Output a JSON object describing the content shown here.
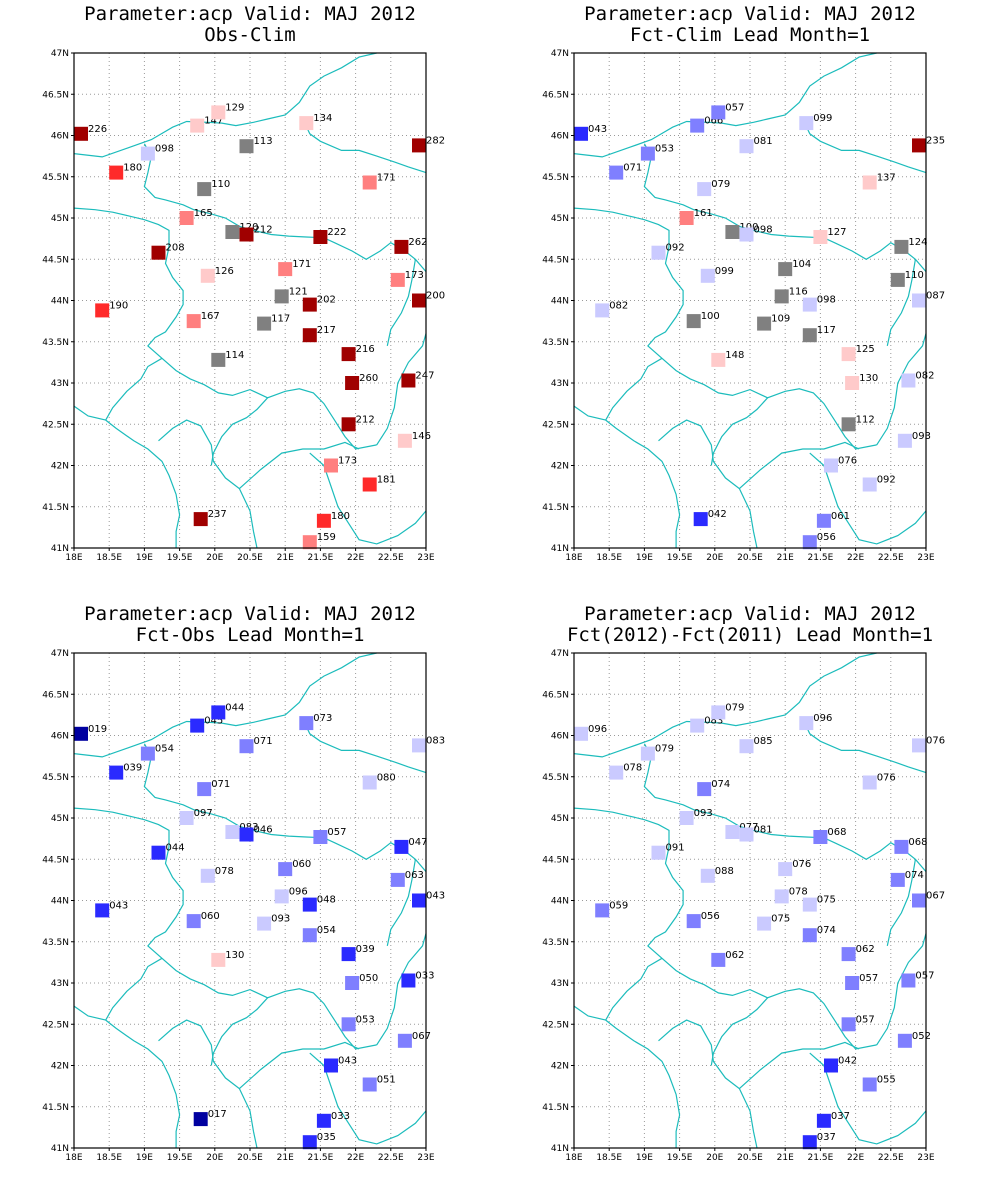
{
  "lat_ticks": [
    "47N",
    "46.5N",
    "46N",
    "45.5N",
    "45N",
    "44.5N",
    "44N",
    "43.5N",
    "43N",
    "42.5N",
    "42N",
    "41.5N",
    "41N"
  ],
  "lon_ticks": [
    "18E",
    "18.5E",
    "19E",
    "19.5E",
    "20E",
    "20.5E",
    "21E",
    "21.5E",
    "22E",
    "22.5E",
    "23E"
  ],
  "colors": {
    "coast": "#1cbcbc",
    "grid": "#9a9a9a",
    "dark_red": "#a00000",
    "red": "#ff2a2a",
    "light_red": "#ff7f7f",
    "pink": "#ffcaca",
    "grey": "#808080",
    "light_blue": "#cacaff",
    "mid_blue": "#7f7fff",
    "blue": "#2a2aff",
    "dark_blue": "#0000a0"
  },
  "panels": [
    {
      "title1": "Parameter:acp Valid: MAJ 2012",
      "title2": "Obs-Clim",
      "stations": [
        {
          "lon": 18.1,
          "lat": 46.02,
          "label": "226",
          "c": "dark_red"
        },
        {
          "lon": 18.6,
          "lat": 45.55,
          "label": "180",
          "c": "red"
        },
        {
          "lon": 19.05,
          "lat": 45.78,
          "label": "098",
          "c": "light_blue"
        },
        {
          "lon": 19.75,
          "lat": 46.12,
          "label": "147",
          "c": "pink"
        },
        {
          "lon": 20.05,
          "lat": 46.28,
          "label": "129",
          "c": "pink"
        },
        {
          "lon": 20.45,
          "lat": 45.87,
          "label": "113",
          "c": "grey"
        },
        {
          "lon": 21.3,
          "lat": 46.15,
          "label": "134",
          "c": "pink"
        },
        {
          "lon": 22.9,
          "lat": 45.88,
          "label": "282",
          "c": "dark_red"
        },
        {
          "lon": 19.85,
          "lat": 45.35,
          "label": "110",
          "c": "grey"
        },
        {
          "lon": 22.2,
          "lat": 45.43,
          "label": "171",
          "c": "light_red"
        },
        {
          "lon": 19.6,
          "lat": 45.0,
          "label": "165",
          "c": "light_red"
        },
        {
          "lon": 20.25,
          "lat": 44.83,
          "label": "120",
          "c": "grey"
        },
        {
          "lon": 20.45,
          "lat": 44.8,
          "label": "212",
          "c": "dark_red"
        },
        {
          "lon": 21.5,
          "lat": 44.77,
          "label": "222",
          "c": "dark_red"
        },
        {
          "lon": 22.65,
          "lat": 44.65,
          "label": "262",
          "c": "dark_red"
        },
        {
          "lon": 19.2,
          "lat": 44.58,
          "label": "208",
          "c": "dark_red"
        },
        {
          "lon": 19.9,
          "lat": 44.3,
          "label": "126",
          "c": "pink"
        },
        {
          "lon": 21.0,
          "lat": 44.38,
          "label": "171",
          "c": "light_red"
        },
        {
          "lon": 22.6,
          "lat": 44.25,
          "label": "173",
          "c": "light_red"
        },
        {
          "lon": 20.95,
          "lat": 44.05,
          "label": "121",
          "c": "grey"
        },
        {
          "lon": 21.35,
          "lat": 43.95,
          "label": "202",
          "c": "dark_red"
        },
        {
          "lon": 22.9,
          "lat": 44.0,
          "label": "200",
          "c": "dark_red"
        },
        {
          "lon": 18.4,
          "lat": 43.88,
          "label": "190",
          "c": "red"
        },
        {
          "lon": 19.7,
          "lat": 43.75,
          "label": "167",
          "c": "light_red"
        },
        {
          "lon": 20.7,
          "lat": 43.72,
          "label": "117",
          "c": "grey"
        },
        {
          "lon": 21.35,
          "lat": 43.58,
          "label": "217",
          "c": "dark_red"
        },
        {
          "lon": 21.9,
          "lat": 43.35,
          "label": "216",
          "c": "dark_red"
        },
        {
          "lon": 20.05,
          "lat": 43.28,
          "label": "114",
          "c": "grey"
        },
        {
          "lon": 21.95,
          "lat": 43.0,
          "label": "260",
          "c": "dark_red"
        },
        {
          "lon": 22.75,
          "lat": 43.03,
          "label": "247",
          "c": "dark_red"
        },
        {
          "lon": 21.9,
          "lat": 42.5,
          "label": "212",
          "c": "dark_red"
        },
        {
          "lon": 22.7,
          "lat": 42.3,
          "label": "146",
          "c": "pink"
        },
        {
          "lon": 21.65,
          "lat": 42.0,
          "label": "173",
          "c": "light_red"
        },
        {
          "lon": 22.2,
          "lat": 41.77,
          "label": "181",
          "c": "red"
        },
        {
          "lon": 19.8,
          "lat": 41.35,
          "label": "237",
          "c": "dark_red"
        },
        {
          "lon": 21.55,
          "lat": 41.33,
          "label": "180",
          "c": "red"
        },
        {
          "lon": 21.35,
          "lat": 41.07,
          "label": "159",
          "c": "light_red"
        }
      ]
    },
    {
      "title1": "Parameter:acp Valid: MAJ 2012",
      "title2": "Fct-Clim Lead Month=1",
      "stations": [
        {
          "lon": 18.1,
          "lat": 46.02,
          "label": "043",
          "c": "blue"
        },
        {
          "lon": 18.6,
          "lat": 45.55,
          "label": "071",
          "c": "mid_blue"
        },
        {
          "lon": 19.05,
          "lat": 45.78,
          "label": "053",
          "c": "mid_blue"
        },
        {
          "lon": 19.75,
          "lat": 46.12,
          "label": "066",
          "c": "mid_blue"
        },
        {
          "lon": 20.05,
          "lat": 46.28,
          "label": "057",
          "c": "mid_blue"
        },
        {
          "lon": 20.45,
          "lat": 45.87,
          "label": "081",
          "c": "light_blue"
        },
        {
          "lon": 21.3,
          "lat": 46.15,
          "label": "099",
          "c": "light_blue"
        },
        {
          "lon": 22.9,
          "lat": 45.88,
          "label": "235",
          "c": "dark_red"
        },
        {
          "lon": 19.85,
          "lat": 45.35,
          "label": "079",
          "c": "light_blue"
        },
        {
          "lon": 22.2,
          "lat": 45.43,
          "label": "137",
          "c": "pink"
        },
        {
          "lon": 19.6,
          "lat": 45.0,
          "label": "161",
          "c": "light_red"
        },
        {
          "lon": 20.25,
          "lat": 44.83,
          "label": "100",
          "c": "grey"
        },
        {
          "lon": 20.45,
          "lat": 44.8,
          "label": "098",
          "c": "light_blue"
        },
        {
          "lon": 21.5,
          "lat": 44.77,
          "label": "127",
          "c": "pink"
        },
        {
          "lon": 22.65,
          "lat": 44.65,
          "label": "124",
          "c": "grey"
        },
        {
          "lon": 19.2,
          "lat": 44.58,
          "label": "092",
          "c": "light_blue"
        },
        {
          "lon": 19.9,
          "lat": 44.3,
          "label": "099",
          "c": "light_blue"
        },
        {
          "lon": 21.0,
          "lat": 44.38,
          "label": "104",
          "c": "grey"
        },
        {
          "lon": 22.6,
          "lat": 44.25,
          "label": "110",
          "c": "grey"
        },
        {
          "lon": 20.95,
          "lat": 44.05,
          "label": "116",
          "c": "grey"
        },
        {
          "lon": 21.35,
          "lat": 43.95,
          "label": "098",
          "c": "light_blue"
        },
        {
          "lon": 22.9,
          "lat": 44.0,
          "label": "087",
          "c": "light_blue"
        },
        {
          "lon": 18.4,
          "lat": 43.88,
          "label": "082",
          "c": "light_blue"
        },
        {
          "lon": 19.7,
          "lat": 43.75,
          "label": "100",
          "c": "grey"
        },
        {
          "lon": 20.7,
          "lat": 43.72,
          "label": "109",
          "c": "grey"
        },
        {
          "lon": 21.35,
          "lat": 43.58,
          "label": "117",
          "c": "grey"
        },
        {
          "lon": 21.9,
          "lat": 43.35,
          "label": "125",
          "c": "pink"
        },
        {
          "lon": 20.05,
          "lat": 43.28,
          "label": "148",
          "c": "pink"
        },
        {
          "lon": 21.95,
          "lat": 43.0,
          "label": "130",
          "c": "pink"
        },
        {
          "lon": 22.75,
          "lat": 43.03,
          "label": "082",
          "c": "light_blue"
        },
        {
          "lon": 21.9,
          "lat": 42.5,
          "label": "112",
          "c": "grey"
        },
        {
          "lon": 22.7,
          "lat": 42.3,
          "label": "093",
          "c": "light_blue"
        },
        {
          "lon": 21.65,
          "lat": 42.0,
          "label": "076",
          "c": "light_blue"
        },
        {
          "lon": 22.2,
          "lat": 41.77,
          "label": "092",
          "c": "light_blue"
        },
        {
          "lon": 19.8,
          "lat": 41.35,
          "label": "042",
          "c": "blue"
        },
        {
          "lon": 21.55,
          "lat": 41.33,
          "label": "061",
          "c": "mid_blue"
        },
        {
          "lon": 21.35,
          "lat": 41.07,
          "label": "056",
          "c": "mid_blue"
        }
      ]
    },
    {
      "title1": "Parameter:acp Valid: MAJ 2012",
      "title2": "Fct-Obs Lead Month=1",
      "stations": [
        {
          "lon": 18.1,
          "lat": 46.02,
          "label": "019",
          "c": "dark_blue"
        },
        {
          "lon": 18.6,
          "lat": 45.55,
          "label": "039",
          "c": "blue"
        },
        {
          "lon": 19.05,
          "lat": 45.78,
          "label": "054",
          "c": "mid_blue"
        },
        {
          "lon": 19.75,
          "lat": 46.12,
          "label": "045",
          "c": "blue"
        },
        {
          "lon": 20.05,
          "lat": 46.28,
          "label": "044",
          "c": "blue"
        },
        {
          "lon": 20.45,
          "lat": 45.87,
          "label": "071",
          "c": "mid_blue"
        },
        {
          "lon": 21.3,
          "lat": 46.15,
          "label": "073",
          "c": "mid_blue"
        },
        {
          "lon": 22.9,
          "lat": 45.88,
          "label": "083",
          "c": "light_blue"
        },
        {
          "lon": 19.85,
          "lat": 45.35,
          "label": "071",
          "c": "mid_blue"
        },
        {
          "lon": 22.2,
          "lat": 45.43,
          "label": "080",
          "c": "light_blue"
        },
        {
          "lon": 19.6,
          "lat": 45.0,
          "label": "097",
          "c": "light_blue"
        },
        {
          "lon": 20.25,
          "lat": 44.83,
          "label": "083",
          "c": "light_blue"
        },
        {
          "lon": 20.45,
          "lat": 44.8,
          "label": "046",
          "c": "blue"
        },
        {
          "lon": 21.5,
          "lat": 44.77,
          "label": "057",
          "c": "mid_blue"
        },
        {
          "lon": 22.65,
          "lat": 44.65,
          "label": "047",
          "c": "blue"
        },
        {
          "lon": 19.2,
          "lat": 44.58,
          "label": "044",
          "c": "blue"
        },
        {
          "lon": 19.9,
          "lat": 44.3,
          "label": "078",
          "c": "light_blue"
        },
        {
          "lon": 21.0,
          "lat": 44.38,
          "label": "060",
          "c": "mid_blue"
        },
        {
          "lon": 22.6,
          "lat": 44.25,
          "label": "063",
          "c": "mid_blue"
        },
        {
          "lon": 20.95,
          "lat": 44.05,
          "label": "096",
          "c": "light_blue"
        },
        {
          "lon": 21.35,
          "lat": 43.95,
          "label": "048",
          "c": "blue"
        },
        {
          "lon": 22.9,
          "lat": 44.0,
          "label": "043",
          "c": "blue"
        },
        {
          "lon": 18.4,
          "lat": 43.88,
          "label": "043",
          "c": "blue"
        },
        {
          "lon": 19.7,
          "lat": 43.75,
          "label": "060",
          "c": "mid_blue"
        },
        {
          "lon": 20.7,
          "lat": 43.72,
          "label": "093",
          "c": "light_blue"
        },
        {
          "lon": 21.35,
          "lat": 43.58,
          "label": "054",
          "c": "mid_blue"
        },
        {
          "lon": 21.9,
          "lat": 43.35,
          "label": "039",
          "c": "blue"
        },
        {
          "lon": 20.05,
          "lat": 43.28,
          "label": "130",
          "c": "pink"
        },
        {
          "lon": 21.95,
          "lat": 43.0,
          "label": "050",
          "c": "mid_blue"
        },
        {
          "lon": 22.75,
          "lat": 43.03,
          "label": "033",
          "c": "blue"
        },
        {
          "lon": 21.9,
          "lat": 42.5,
          "label": "053",
          "c": "mid_blue"
        },
        {
          "lon": 22.7,
          "lat": 42.3,
          "label": "067",
          "c": "mid_blue"
        },
        {
          "lon": 21.65,
          "lat": 42.0,
          "label": "043",
          "c": "blue"
        },
        {
          "lon": 22.2,
          "lat": 41.77,
          "label": "051",
          "c": "mid_blue"
        },
        {
          "lon": 19.8,
          "lat": 41.35,
          "label": "017",
          "c": "dark_blue"
        },
        {
          "lon": 21.55,
          "lat": 41.33,
          "label": "033",
          "c": "blue"
        },
        {
          "lon": 21.35,
          "lat": 41.07,
          "label": "035",
          "c": "blue"
        }
      ]
    },
    {
      "title1": "Parameter:acp Valid: MAJ 2012",
      "title2": "Fct(2012)-Fct(2011) Lead Month=1",
      "stations": [
        {
          "lon": 18.1,
          "lat": 46.02,
          "label": "096",
          "c": "light_blue"
        },
        {
          "lon": 18.6,
          "lat": 45.55,
          "label": "078",
          "c": "light_blue"
        },
        {
          "lon": 19.05,
          "lat": 45.78,
          "label": "079",
          "c": "light_blue"
        },
        {
          "lon": 19.75,
          "lat": 46.12,
          "label": "083",
          "c": "light_blue"
        },
        {
          "lon": 20.05,
          "lat": 46.28,
          "label": "079",
          "c": "light_blue"
        },
        {
          "lon": 20.45,
          "lat": 45.87,
          "label": "085",
          "c": "light_blue"
        },
        {
          "lon": 21.3,
          "lat": 46.15,
          "label": "096",
          "c": "light_blue"
        },
        {
          "lon": 22.9,
          "lat": 45.88,
          "label": "076",
          "c": "light_blue"
        },
        {
          "lon": 19.85,
          "lat": 45.35,
          "label": "074",
          "c": "mid_blue"
        },
        {
          "lon": 22.2,
          "lat": 45.43,
          "label": "076",
          "c": "light_blue"
        },
        {
          "lon": 19.6,
          "lat": 45.0,
          "label": "093",
          "c": "light_blue"
        },
        {
          "lon": 20.25,
          "lat": 44.83,
          "label": "077",
          "c": "light_blue"
        },
        {
          "lon": 20.45,
          "lat": 44.8,
          "label": "081",
          "c": "light_blue"
        },
        {
          "lon": 21.5,
          "lat": 44.77,
          "label": "068",
          "c": "mid_blue"
        },
        {
          "lon": 22.65,
          "lat": 44.65,
          "label": "068",
          "c": "mid_blue"
        },
        {
          "lon": 19.2,
          "lat": 44.58,
          "label": "091",
          "c": "light_blue"
        },
        {
          "lon": 19.9,
          "lat": 44.3,
          "label": "088",
          "c": "light_blue"
        },
        {
          "lon": 21.0,
          "lat": 44.38,
          "label": "076",
          "c": "light_blue"
        },
        {
          "lon": 22.6,
          "lat": 44.25,
          "label": "074",
          "c": "mid_blue"
        },
        {
          "lon": 20.95,
          "lat": 44.05,
          "label": "078",
          "c": "light_blue"
        },
        {
          "lon": 21.35,
          "lat": 43.95,
          "label": "075",
          "c": "light_blue"
        },
        {
          "lon": 22.9,
          "lat": 44.0,
          "label": "067",
          "c": "mid_blue"
        },
        {
          "lon": 18.4,
          "lat": 43.88,
          "label": "059",
          "c": "mid_blue"
        },
        {
          "lon": 19.7,
          "lat": 43.75,
          "label": "056",
          "c": "mid_blue"
        },
        {
          "lon": 20.7,
          "lat": 43.72,
          "label": "075",
          "c": "light_blue"
        },
        {
          "lon": 21.35,
          "lat": 43.58,
          "label": "074",
          "c": "mid_blue"
        },
        {
          "lon": 21.9,
          "lat": 43.35,
          "label": "062",
          "c": "mid_blue"
        },
        {
          "lon": 20.05,
          "lat": 43.28,
          "label": "062",
          "c": "mid_blue"
        },
        {
          "lon": 21.95,
          "lat": 43.0,
          "label": "057",
          "c": "mid_blue"
        },
        {
          "lon": 22.75,
          "lat": 43.03,
          "label": "057",
          "c": "mid_blue"
        },
        {
          "lon": 21.9,
          "lat": 42.5,
          "label": "057",
          "c": "mid_blue"
        },
        {
          "lon": 22.7,
          "lat": 42.3,
          "label": "052",
          "c": "mid_blue"
        },
        {
          "lon": 21.65,
          "lat": 42.0,
          "label": "042",
          "c": "blue"
        },
        {
          "lon": 22.2,
          "lat": 41.77,
          "label": "055",
          "c": "mid_blue"
        },
        {
          "lon": 21.55,
          "lat": 41.33,
          "label": "037",
          "c": "blue"
        },
        {
          "lon": 21.35,
          "lat": 41.07,
          "label": "037",
          "c": "blue"
        }
      ]
    }
  ]
}
